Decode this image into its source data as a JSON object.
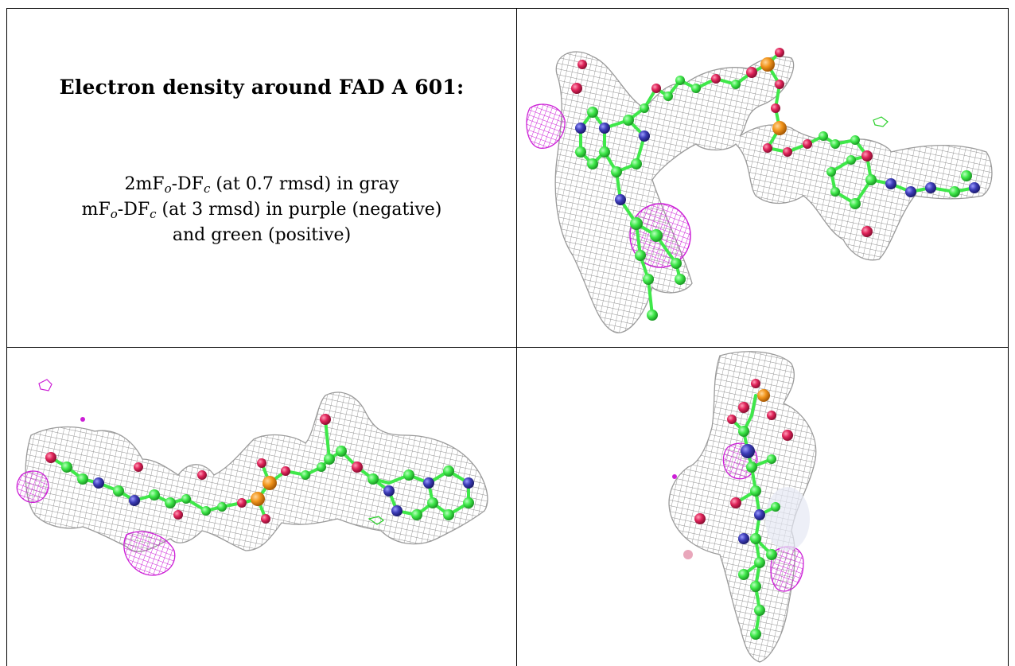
{
  "panel": {
    "title": "Electron density around FAD A 601:",
    "legend": {
      "line1": {
        "pre": "2mF",
        "sub1": "o",
        "mid": "-DF",
        "sub2": "c",
        "post": " (at 0.7 rmsd) in gray"
      },
      "line2": {
        "pre": "mF",
        "sub1": "o",
        "mid": "-DF",
        "sub2": "c",
        "post": " (at 3 rmsd) in purple (negative)"
      },
      "line3": "and green (positive)"
    }
  },
  "colors": {
    "mesh_gray": "#9a9a9a",
    "carbon_green": "#3fe84a",
    "oxygen_red": "#e0245a",
    "nitrogen_blue": "#3d3db8",
    "phosphorus_orange": "#f2951c",
    "negative_density": "#d020d8",
    "positive_density": "#28d028"
  },
  "views": [
    {
      "name": "view-top-right",
      "icon": "molecule-view-1"
    },
    {
      "name": "view-bottom-left",
      "icon": "molecule-view-2"
    },
    {
      "name": "view-bottom-right",
      "icon": "molecule-view-3"
    }
  ]
}
